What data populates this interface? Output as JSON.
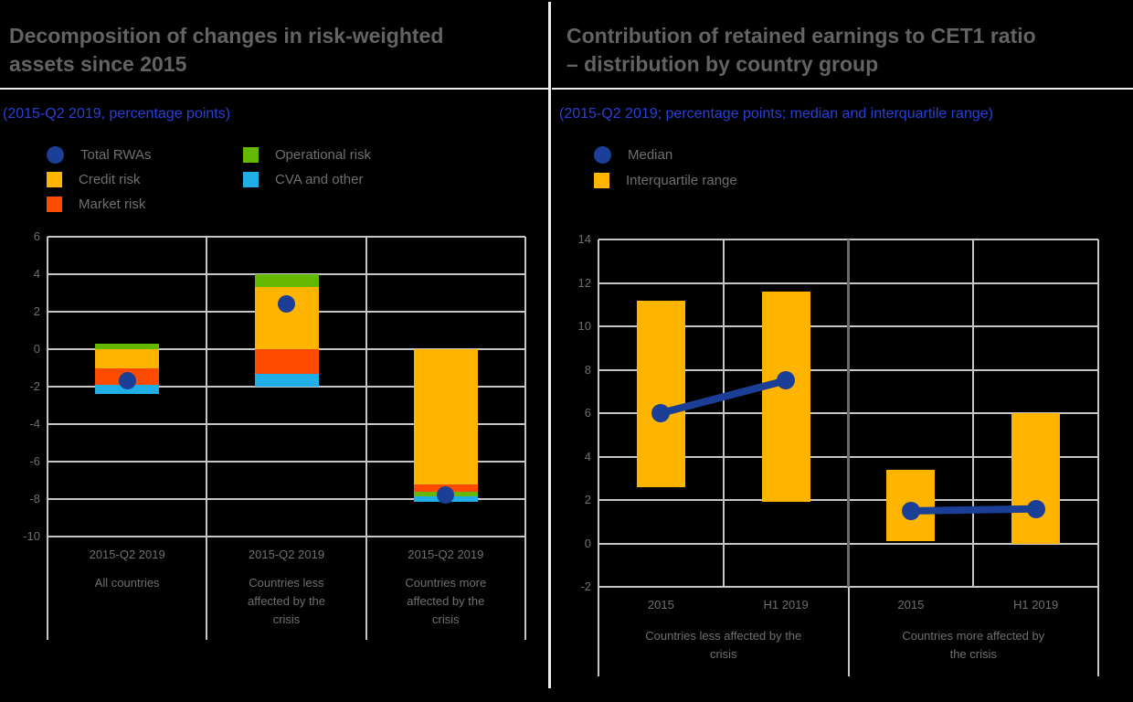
{
  "colors": {
    "background": "#000000",
    "grid": "#c6c6c6",
    "frame_rule": "#ececec",
    "divider_dark": "#6b6b6b",
    "axis_text": "#6f6f6f",
    "title_text": "#636363",
    "subtitle_text": "#2840d8"
  },
  "chart_data": [
    {
      "id": "rwa-decomposition",
      "type": "bar",
      "subtype": "stacked-bar-with-total-dot",
      "title": "Decomposition of changes in risk-weighted\nassets since 2015",
      "subtitle": "(2015-Q2 2019, percentage points)",
      "ylabel": "percentage points",
      "ylim": [
        -10,
        6
      ],
      "yticks": [
        6,
        4,
        2,
        0,
        -2,
        -4,
        -6,
        -8,
        -10
      ],
      "grid": true,
      "legend": [
        {
          "label": "Total RWAs",
          "marker": "circle",
          "color": "#1B3F97"
        },
        {
          "label": "Credit risk",
          "marker": "square",
          "color": "#FFB400"
        },
        {
          "label": "Market risk",
          "marker": "square",
          "color": "#FF4B00"
        },
        {
          "label": "Operational risk",
          "marker": "square",
          "color": "#65B800"
        },
        {
          "label": "CVA and other",
          "marker": "square",
          "color": "#1FAEE5"
        }
      ],
      "categories": [
        {
          "period": "2015-Q2 2019",
          "group": "All countries",
          "group_wrapped": "All countries"
        },
        {
          "period": "2015-Q2 2019",
          "group": "Countries less affected by the crisis",
          "group_wrapped": "Countries less\naffected by the\ncrisis"
        },
        {
          "period": "2015-Q2 2019",
          "group": "Countries more affected by the crisis",
          "group_wrapped": "Countries more\naffected by the\ncrisis"
        }
      ],
      "series": [
        {
          "name": "Credit risk",
          "color": "#FFB400",
          "values": [
            -1.0,
            3.3,
            -7.2
          ]
        },
        {
          "name": "Market risk",
          "color": "#FF4B00",
          "values": [
            -0.9,
            -1.3,
            -0.4
          ]
        },
        {
          "name": "Operational risk",
          "color": "#65B800",
          "values": [
            0.3,
            0.7,
            -0.25
          ]
        },
        {
          "name": "CVA and other",
          "color": "#1FAEE5",
          "values": [
            -0.5,
            -0.7,
            -0.3
          ]
        }
      ],
      "dots": {
        "name": "Total RWAs",
        "color": "#1B3F97",
        "values": [
          -1.7,
          2.4,
          -7.8
        ]
      }
    },
    {
      "id": "retained-earnings-cet1",
      "type": "bar",
      "subtype": "interquartile-range-with-median",
      "title": "Contribution of retained earnings to CET1 ratio\n– distribution by country group",
      "subtitle": "(2015-Q2 2019; percentage points; median and interquartile range)",
      "ylabel": "percentage points",
      "ylim": [
        -2,
        14
      ],
      "yticks": [
        14,
        12,
        10,
        8,
        6,
        4,
        2,
        0,
        -2
      ],
      "grid": true,
      "bar_color": "#FFB400",
      "median_color": "#1B3F97",
      "legend": [
        {
          "label": "Median",
          "marker": "circle",
          "color": "#1B3F97"
        },
        {
          "label": "Interquartile range",
          "marker": "square",
          "color": "#FFB400"
        }
      ],
      "groups": [
        {
          "label": "Countries less affected by the crisis",
          "label_wrapped": "Countries less affected by the\ncrisis",
          "bars": [
            {
              "x": "2015",
              "q1": 2.6,
              "q3": 11.2,
              "median": 6.0
            },
            {
              "x": "H1 2019",
              "q1": 1.9,
              "q3": 11.6,
              "median": 7.5
            }
          ]
        },
        {
          "label": "Countries more affected by the crisis",
          "label_wrapped": "Countries more affected by\nthe crisis",
          "bars": [
            {
              "x": "2015",
              "q1": 0.1,
              "q3": 3.4,
              "median": 1.5
            },
            {
              "x": "H1 2019",
              "q1": 0.0,
              "q3": 6.0,
              "median": 1.6
            }
          ]
        }
      ]
    }
  ]
}
